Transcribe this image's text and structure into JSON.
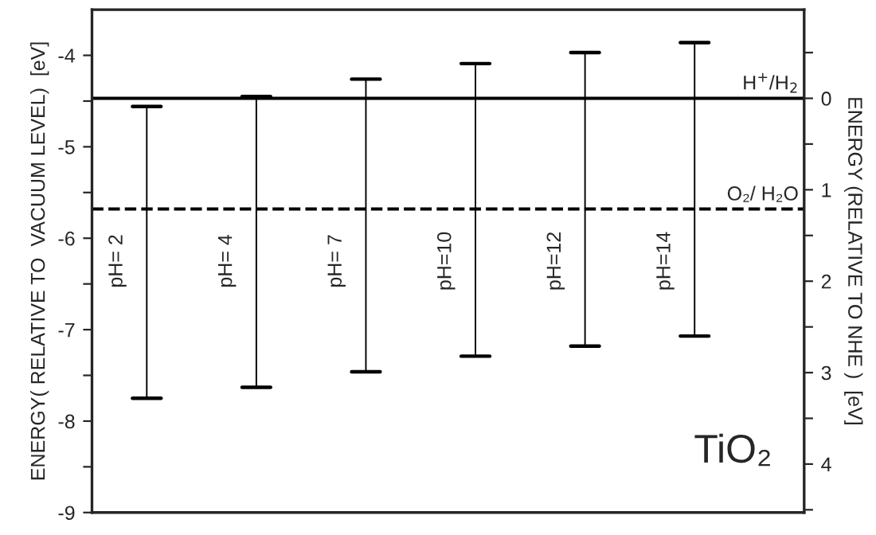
{
  "chart_data": {
    "type": "bar",
    "categories": [
      "pH= 2",
      "pH= 4",
      "pH= 7",
      "pH=10",
      "pH=12",
      "pH=14"
    ],
    "base": [
      -7.75,
      -7.63,
      -7.46,
      -7.29,
      -7.18,
      -7.07
    ],
    "values": [
      3.19,
      3.18,
      3.2,
      3.2,
      3.21,
      3.21
    ],
    "color": "#000000",
    "ylabel": "ENERGY( RELATIVE TO  VACUUM LEVEL)  [eV]",
    "y2label": "ENERGY (RELATIVE TO NHE )  [eV]",
    "ylim": [
      -9,
      -3.5
    ],
    "yticks": [
      -9,
      {
        "value": -8.5,
        "label": null
      },
      -8,
      {
        "value": -7.5,
        "label": null
      },
      -7,
      {
        "value": -6.5,
        "label": null
      },
      -6,
      {
        "value": -5.5,
        "label": null
      },
      -5,
      {
        "value": -4.5,
        "label": null
      },
      -4
    ],
    "y2lim": [
      4.53,
      -0.97
    ],
    "y2ticks": [
      {
        "value": -0.5,
        "label": null
      },
      0,
      {
        "value": 0.5,
        "label": null
      },
      1,
      {
        "value": 1.5,
        "label": null
      },
      2,
      {
        "value": 2.5,
        "label": null
      },
      3,
      {
        "value": 3.5,
        "label": null
      },
      4,
      {
        "value": 4.5,
        "label": null
      }
    ],
    "ref_lines": [
      {
        "axis": "y",
        "value": -4.47,
        "label": "H$^{+}$/H$_{2}$",
        "line_style": "solid",
        "color": "#000000"
      },
      {
        "axis": "y",
        "value": -5.68,
        "label": "O₂/ H₂O",
        "line_style": "dashed",
        "color": "#000000"
      }
    ],
    "annotations": [
      "TiO₂"
    ],
    "tick_labels": "y",
    "grid": false,
    "legend": false
  }
}
